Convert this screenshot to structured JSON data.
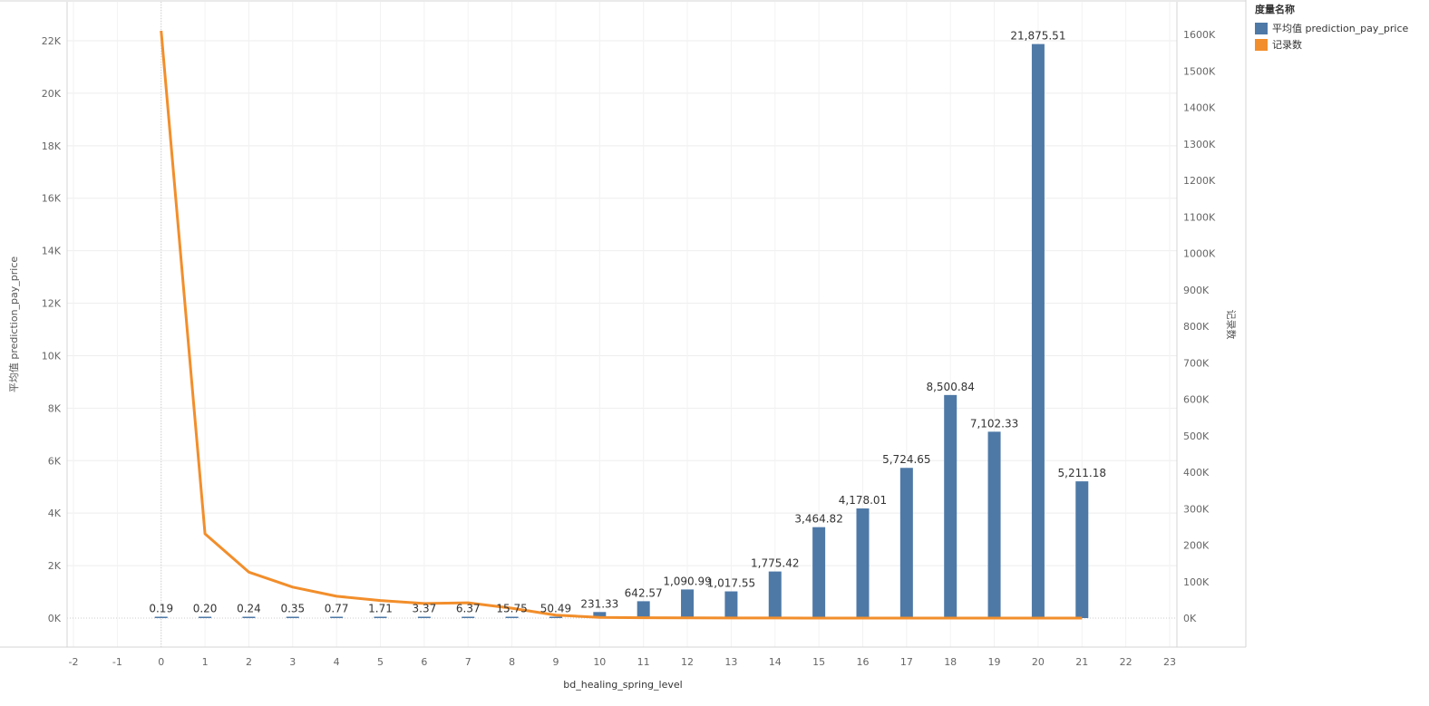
{
  "legend": {
    "title": "度量名称",
    "items": [
      {
        "label": "平均值 prediction_pay_price",
        "color": "#4e79a7"
      },
      {
        "label": "记录数",
        "color": "#f28e2b"
      }
    ]
  },
  "chart_data": {
    "type": "bar",
    "xlabel": "bd_healing_spring_level",
    "ylabel": "平均值 prediction_pay_price",
    "y2label": "记录数",
    "xlim": [
      -2,
      23
    ],
    "x_ticks": [
      "-2",
      "-1",
      "0",
      "1",
      "2",
      "3",
      "4",
      "5",
      "6",
      "7",
      "8",
      "9",
      "10",
      "11",
      "12",
      "13",
      "14",
      "15",
      "16",
      "17",
      "18",
      "19",
      "20",
      "21",
      "22",
      "23"
    ],
    "ylim": [
      0,
      22000
    ],
    "y_ticks": [
      "0K",
      "2K",
      "4K",
      "6K",
      "8K",
      "10K",
      "12K",
      "14K",
      "16K",
      "18K",
      "20K",
      "22K"
    ],
    "y2lim": [
      0,
      1600000
    ],
    "y2_ticks": [
      "0K",
      "100K",
      "200K",
      "300K",
      "400K",
      "500K",
      "600K",
      "700K",
      "800K",
      "900K",
      "1000K",
      "1100K",
      "1200K",
      "1300K",
      "1400K",
      "1500K",
      "1600K"
    ],
    "grid": true,
    "legend_position": "top-right",
    "x": [
      0,
      1,
      2,
      3,
      4,
      5,
      6,
      7,
      8,
      9,
      10,
      11,
      12,
      13,
      14,
      15,
      16,
      17,
      18,
      19,
      20,
      21
    ],
    "series": [
      {
        "name": "平均值 prediction_pay_price",
        "type": "bar",
        "axis": "left",
        "color": "#4e79a7",
        "values": [
          0.19,
          0.2,
          0.24,
          0.35,
          0.77,
          1.71,
          3.37,
          6.37,
          15.75,
          50.49,
          231.33,
          642.57,
          1090.99,
          1017.55,
          1775.42,
          3464.82,
          4178.01,
          5724.65,
          8500.84,
          7102.33,
          21875.51,
          5211.18
        ],
        "labels": [
          "0.19",
          "0.20",
          "0.24",
          "0.35",
          "0.77",
          "1.71",
          "3.37",
          "6.37",
          "15.75",
          "50.49",
          "231.33",
          "642.57",
          "1,090.99",
          "1,017.55",
          "1,775.42",
          "3,464.82",
          "4,178.01",
          "5,724.65",
          "8,500.84",
          "7,102.33",
          "21,875.51",
          "5,211.18"
        ]
      },
      {
        "name": "记录数",
        "type": "line",
        "axis": "right",
        "color": "#f28e2b",
        "values": [
          1610000,
          231000,
          126000,
          85000,
          60000,
          48000,
          40000,
          42000,
          27000,
          8000,
          2000,
          800,
          500,
          300,
          200,
          100,
          80,
          60,
          40,
          30,
          20,
          10
        ]
      }
    ]
  }
}
